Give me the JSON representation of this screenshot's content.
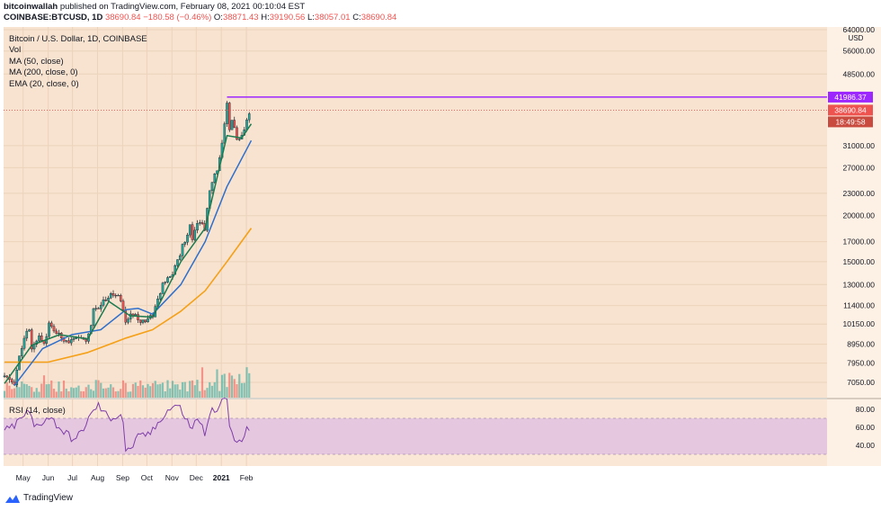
{
  "header": {
    "publisher": "bitcoinwallah",
    "published_text": "published on TradingView.com, February 08, 2021 00:10:04 EST",
    "symbol": "COINBASE:BTCUSD, 1D",
    "last": "38690.84",
    "change": "−180.58 (−0.46%)",
    "o_label": "O:",
    "o_value": "38871.43",
    "h_label": "H:",
    "h_value": "39190.56",
    "l_label": "L:",
    "l_value": "38057.01",
    "c_label": "C:",
    "c_value": "38690.84"
  },
  "legend": {
    "title": "Bitcoin / U.S. Dollar, 1D, COINBASE",
    "vol": "Vol",
    "ma50": "MA (50, close)",
    "ma200": "MA (200, close, 0)",
    "ema20": "EMA (20, close, 0)"
  },
  "rsi_label": "RSI (14, close)",
  "brand": "TradingView",
  "colors": {
    "bg_main": "#f7e3cf",
    "bg_rsi": "#fbe7d6",
    "up": "#26a69a",
    "down": "#ef5350",
    "candle": "#131722",
    "ema20": "#1b7a4f",
    "ma50": "#2f6fcc",
    "ma200": "#f5a017",
    "resistance": "#9c27ff",
    "rsi_line": "#7e3fa8",
    "rsi_band": "#e6c7e0"
  },
  "chart_data": {
    "type": "candlestick",
    "title": "Bitcoin / U.S. Dollar, 1D, COINBASE",
    "y_axis_unit": "USD",
    "y_scale": "log",
    "y_ticks": [
      "64000.00",
      "56000.00",
      "48500.00",
      "41986.37",
      "38690.84",
      "31000.00",
      "27000.00",
      "23000.00",
      "20000.00",
      "17000.00",
      "15000.00",
      "13000.00",
      "11400.00",
      "10150.00",
      "8950.00",
      "7950.00",
      "7050.00"
    ],
    "x_ticks": [
      "May",
      "Jun",
      "Jul",
      "Aug",
      "Sep",
      "Oct",
      "Nov",
      "Dec",
      "2021",
      "Feb"
    ],
    "resistance_label": "41986.37",
    "resistance_value": 41986.37,
    "last_price_label": "38690.84",
    "countdown_label": "18:49:58",
    "price_path": [
      [
        "2020-04-08",
        7300
      ],
      [
        "2020-04-20",
        7000
      ],
      [
        "2020-04-29",
        8800
      ],
      [
        "2020-05-08",
        9900
      ],
      [
        "2020-05-12",
        8600
      ],
      [
        "2020-05-20",
        9500
      ],
      [
        "2020-05-27",
        9000
      ],
      [
        "2020-06-02",
        10100
      ],
      [
        "2020-06-15",
        9400
      ],
      [
        "2020-06-28",
        9100
      ],
      [
        "2020-07-10",
        9250
      ],
      [
        "2020-07-20",
        9200
      ],
      [
        "2020-07-27",
        11000
      ],
      [
        "2020-08-08",
        11700
      ],
      [
        "2020-08-17",
        12300
      ],
      [
        "2020-08-31",
        11800
      ],
      [
        "2020-09-03",
        10300
      ],
      [
        "2020-09-17",
        10900
      ],
      [
        "2020-09-23",
        10300
      ],
      [
        "2020-10-08",
        10700
      ],
      [
        "2020-10-12",
        11400
      ],
      [
        "2020-10-21",
        13000
      ],
      [
        "2020-11-01",
        13800
      ],
      [
        "2020-11-12",
        16000
      ],
      [
        "2020-11-24",
        19000
      ],
      [
        "2020-11-27",
        17000
      ],
      [
        "2020-12-01",
        19500
      ],
      [
        "2020-12-12",
        18500
      ],
      [
        "2020-12-17",
        23000
      ],
      [
        "2020-12-27",
        27000
      ],
      [
        "2021-01-03",
        32000
      ],
      [
        "2021-01-08",
        40000
      ],
      [
        "2021-01-11",
        34000
      ],
      [
        "2021-01-15",
        37000
      ],
      [
        "2021-01-21",
        31500
      ],
      [
        "2021-01-26",
        32500
      ],
      [
        "2021-01-29",
        34000
      ],
      [
        "2021-02-04",
        37500
      ],
      [
        "2021-02-07",
        38690
      ]
    ],
    "ema20_path": [
      [
        "2020-04-08",
        7000
      ],
      [
        "2020-05-12",
        8900
      ],
      [
        "2020-06-15",
        9500
      ],
      [
        "2020-07-20",
        9250
      ],
      [
        "2020-08-15",
        11700
      ],
      [
        "2020-09-10",
        10700
      ],
      [
        "2020-10-08",
        10600
      ],
      [
        "2020-11-12",
        15000
      ],
      [
        "2020-12-12",
        18500
      ],
      [
        "2021-01-08",
        33000
      ],
      [
        "2021-01-26",
        32500
      ],
      [
        "2021-02-07",
        35500
      ]
    ],
    "ma50_path": [
      [
        "2020-04-20",
        6900
      ],
      [
        "2020-05-25",
        8700
      ],
      [
        "2020-06-30",
        9500
      ],
      [
        "2020-08-05",
        9800
      ],
      [
        "2020-09-05",
        11100
      ],
      [
        "2020-09-20",
        11200
      ],
      [
        "2020-10-08",
        10800
      ],
      [
        "2020-11-12",
        13000
      ],
      [
        "2020-12-12",
        17000
      ],
      [
        "2021-01-08",
        24000
      ],
      [
        "2021-02-07",
        32000
      ]
    ],
    "ma200_path": [
      [
        "2020-04-08",
        8000
      ],
      [
        "2020-06-01",
        8000
      ],
      [
        "2020-07-20",
        8500
      ],
      [
        "2020-09-05",
        9300
      ],
      [
        "2020-10-08",
        9800
      ],
      [
        "2020-11-12",
        11000
      ],
      [
        "2020-12-12",
        12500
      ],
      [
        "2021-01-08",
        15000
      ],
      [
        "2021-02-07",
        18500
      ]
    ],
    "rsi_ticks": [
      "80.00",
      "60.00",
      "40.00"
    ],
    "rsi_band": [
      30,
      70
    ],
    "rsi_path": [
      [
        "2020-04-08",
        55
      ],
      [
        "2020-04-20",
        62
      ],
      [
        "2020-05-08",
        78
      ],
      [
        "2020-05-15",
        60
      ],
      [
        "2020-06-02",
        72
      ],
      [
        "2020-06-20",
        55
      ],
      [
        "2020-07-05",
        45
      ],
      [
        "2020-07-25",
        75
      ],
      [
        "2020-08-01",
        85
      ],
      [
        "2020-08-15",
        70
      ],
      [
        "2020-09-01",
        75
      ],
      [
        "2020-09-05",
        30
      ],
      [
        "2020-09-20",
        48
      ],
      [
        "2020-10-08",
        55
      ],
      [
        "2020-10-22",
        75
      ],
      [
        "2020-11-05",
        85
      ],
      [
        "2020-11-12",
        80
      ],
      [
        "2020-11-27",
        55
      ],
      [
        "2020-12-01",
        75
      ],
      [
        "2020-12-12",
        52
      ],
      [
        "2020-12-20",
        78
      ],
      [
        "2021-01-03",
        88
      ],
      [
        "2021-01-08",
        92
      ],
      [
        "2021-01-11",
        60
      ],
      [
        "2021-01-21",
        40
      ],
      [
        "2021-01-26",
        45
      ],
      [
        "2021-02-04",
        60
      ],
      [
        "2021-02-07",
        62
      ]
    ]
  }
}
